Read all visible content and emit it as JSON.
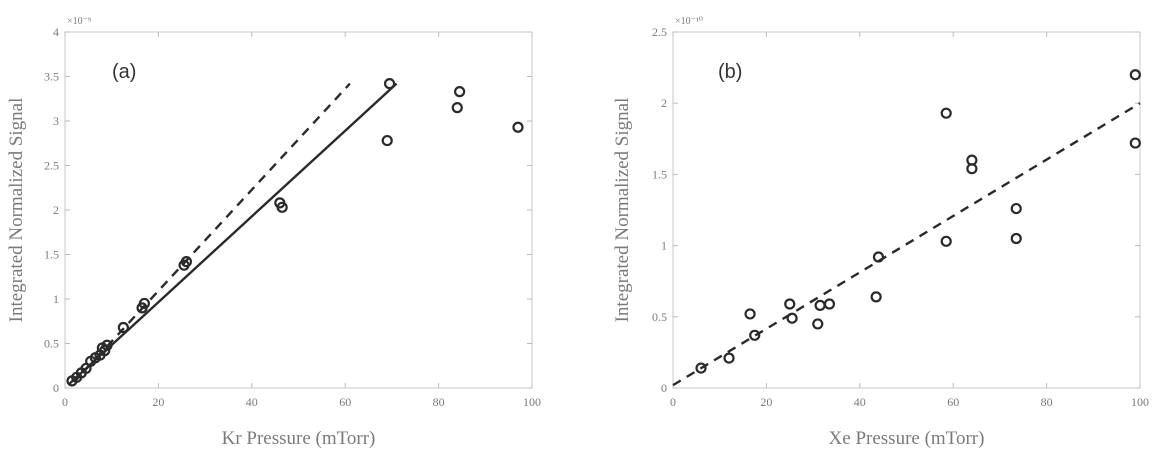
{
  "chart_data": [
    {
      "type": "scatter",
      "panel_label": "(a)",
      "xlabel": "Kr Pressure (mTorr)",
      "ylabel": "Integrated Normalized Signal",
      "exponent_label": "×10⁻⁹",
      "xlim": [
        0,
        100
      ],
      "ylim": [
        0,
        4
      ],
      "xticks": [
        "0",
        "20",
        "40",
        "60",
        "80",
        "100"
      ],
      "yticks": [
        "0",
        "0.5",
        "1",
        "1.5",
        "2",
        "2.5",
        "3",
        "3.5",
        "4"
      ],
      "grid": false,
      "series": [
        {
          "marker": "open-circle",
          "x": [
            1.5,
            2.5,
            3.5,
            4.5,
            5.5,
            6.5,
            7.5,
            8.0,
            8.5,
            9.0,
            12.5,
            16.5,
            17.0,
            25.5,
            26.0,
            46.0,
            46.5,
            69.0,
            69.5,
            84.0,
            84.5,
            97.0
          ],
          "y": [
            0.08,
            0.12,
            0.17,
            0.22,
            0.3,
            0.34,
            0.37,
            0.45,
            0.42,
            0.48,
            0.68,
            0.9,
            0.95,
            1.38,
            1.42,
            2.08,
            2.03,
            2.78,
            3.42,
            3.15,
            3.33,
            2.93
          ]
        }
      ],
      "fit_lines": [
        {
          "style": "dashed",
          "x": [
            2,
            61
          ],
          "y": [
            0.07,
            3.42
          ]
        },
        {
          "style": "solid",
          "x": [
            1,
            71
          ],
          "y": [
            0.05,
            3.42
          ]
        }
      ]
    },
    {
      "type": "scatter",
      "panel_label": "(b)",
      "xlabel": "Xe Pressure (mTorr)",
      "ylabel": "Integrated Normalized Signal",
      "exponent_label": "×10⁻¹⁰",
      "xlim": [
        0,
        100
      ],
      "ylim": [
        0,
        2.5
      ],
      "xticks": [
        "0",
        "20",
        "40",
        "60",
        "80",
        "100"
      ],
      "yticks": [
        "0",
        "0.5",
        "1",
        "1.5",
        "2",
        "2.5"
      ],
      "grid": false,
      "series": [
        {
          "marker": "open-circle",
          "x": [
            6,
            12,
            16.5,
            17.5,
            25,
            25.5,
            31,
            31.5,
            33.5,
            43.5,
            44,
            58.5,
            58.5,
            64,
            64,
            73.5,
            73.5,
            99,
            99
          ],
          "y": [
            0.14,
            0.21,
            0.52,
            0.37,
            0.59,
            0.49,
            0.45,
            0.58,
            0.59,
            0.64,
            0.92,
            1.93,
            1.03,
            1.6,
            1.54,
            1.26,
            1.05,
            2.2,
            1.72
          ]
        }
      ],
      "fit_lines": [
        {
          "style": "dashed",
          "x": [
            0,
            100
          ],
          "y": [
            0.02,
            2.0
          ]
        }
      ]
    }
  ]
}
